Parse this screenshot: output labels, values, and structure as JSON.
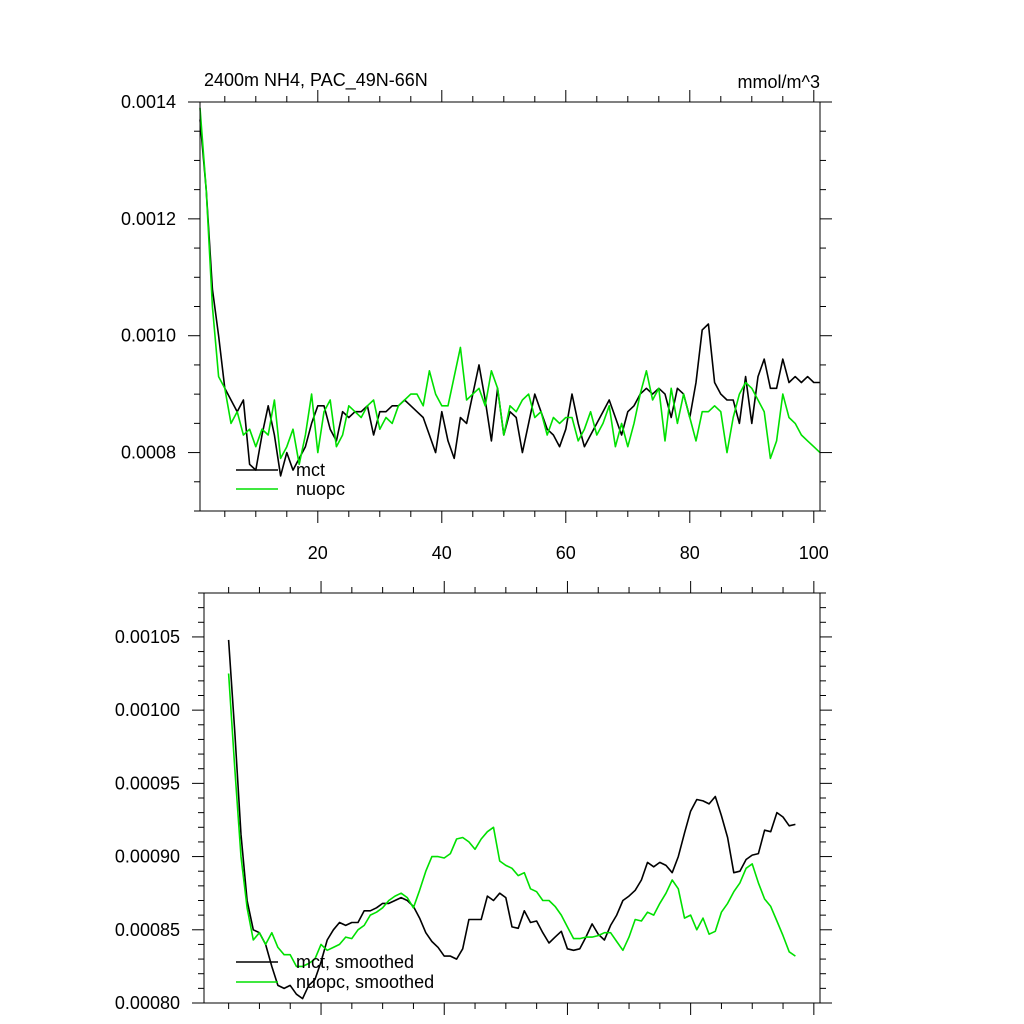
{
  "chart_data": [
    {
      "type": "line",
      "title": "2400m NH4, PAC_49N-66N",
      "units": "mmol/m^3",
      "xlim": [
        1,
        101
      ],
      "ylim": [
        0.0007,
        0.0014
      ],
      "x_ticks": [
        20,
        40,
        60,
        80,
        100
      ],
      "y_ticks": [
        "0.0008",
        "0.0010",
        "0.0012",
        "0.0014"
      ],
      "legend_position": "bottom-left",
      "series": [
        {
          "name": "mct",
          "color": "#000000",
          "x": [
            1,
            2,
            3,
            4,
            5,
            6,
            7,
            8,
            9,
            10,
            11,
            12,
            13,
            14,
            15,
            16,
            17,
            18,
            19,
            20,
            21,
            22,
            23,
            24,
            25,
            26,
            27,
            28,
            29,
            30,
            31,
            32,
            33,
            34,
            35,
            36,
            37,
            38,
            39,
            40,
            41,
            42,
            43,
            44,
            45,
            46,
            47,
            48,
            49,
            50,
            51,
            52,
            53,
            54,
            55,
            56,
            57,
            58,
            59,
            60,
            61,
            62,
            63,
            64,
            65,
            66,
            67,
            68,
            69,
            70,
            71,
            72,
            73,
            74,
            75,
            76,
            77,
            78,
            79,
            80,
            81,
            82,
            83,
            84,
            85,
            86,
            87,
            88,
            89,
            90,
            91,
            92,
            93,
            94,
            95,
            96,
            97,
            98,
            99,
            100,
            101
          ],
          "values": [
            0.00137,
            0.00125,
            0.00108,
            0.001,
            0.00091,
            0.00089,
            0.00087,
            0.00089,
            0.00078,
            0.00077,
            0.00083,
            0.00088,
            0.00083,
            0.00076,
            0.0008,
            0.00077,
            0.00079,
            0.00081,
            0.00085,
            0.00088,
            0.00088,
            0.00084,
            0.00082,
            0.00087,
            0.00086,
            0.00087,
            0.00087,
            0.00088,
            0.00083,
            0.00087,
            0.00087,
            0.00088,
            0.00088,
            0.00089,
            0.00088,
            0.00087,
            0.00086,
            0.00083,
            0.0008,
            0.00087,
            0.00082,
            0.00079,
            0.00086,
            0.00085,
            0.0009,
            0.00095,
            0.00089,
            0.00082,
            0.00091,
            0.00083,
            0.00087,
            0.00086,
            0.0008,
            0.00085,
            0.0009,
            0.00087,
            0.00084,
            0.00083,
            0.00081,
            0.00084,
            0.0009,
            0.00085,
            0.00081,
            0.00083,
            0.00085,
            0.00087,
            0.00089,
            0.00086,
            0.00083,
            0.00087,
            0.00088,
            0.0009,
            0.00091,
            0.0009,
            0.00091,
            0.0009,
            0.00086,
            0.00091,
            0.0009,
            0.00086,
            0.00092,
            0.00101,
            0.00102,
            0.00092,
            0.0009,
            0.00089,
            0.00089,
            0.00085,
            0.00093,
            0.00085,
            0.00093,
            0.00096,
            0.00091,
            0.00091,
            0.00096,
            0.00092,
            0.00093,
            0.00092,
            0.00093,
            0.00092,
            0.00092
          ]
        },
        {
          "name": "nuopc",
          "color": "#00e000",
          "x": [
            1,
            2,
            3,
            4,
            5,
            6,
            7,
            8,
            9,
            10,
            11,
            12,
            13,
            14,
            15,
            16,
            17,
            18,
            19,
            20,
            21,
            22,
            23,
            24,
            25,
            26,
            27,
            28,
            29,
            30,
            31,
            32,
            33,
            34,
            35,
            36,
            37,
            38,
            39,
            40,
            41,
            42,
            43,
            44,
            45,
            46,
            47,
            48,
            49,
            50,
            51,
            52,
            53,
            54,
            55,
            56,
            57,
            58,
            59,
            60,
            61,
            62,
            63,
            64,
            65,
            66,
            67,
            68,
            69,
            70,
            71,
            72,
            73,
            74,
            75,
            76,
            77,
            78,
            79,
            80,
            81,
            82,
            83,
            84,
            85,
            86,
            87,
            88,
            89,
            90,
            91,
            92,
            93,
            94,
            95,
            96,
            97,
            98,
            99,
            100,
            101
          ],
          "values": [
            0.00139,
            0.00125,
            0.00105,
            0.00093,
            0.00091,
            0.00085,
            0.00087,
            0.00083,
            0.00084,
            0.00081,
            0.00084,
            0.00083,
            0.00089,
            0.00079,
            0.00081,
            0.00084,
            0.00078,
            0.00083,
            0.0009,
            0.0008,
            0.00087,
            0.00089,
            0.00081,
            0.00083,
            0.00088,
            0.00087,
            0.00086,
            0.00088,
            0.00089,
            0.00084,
            0.00086,
            0.00085,
            0.00088,
            0.00089,
            0.0009,
            0.0009,
            0.00088,
            0.00094,
            0.0009,
            0.00088,
            0.00088,
            0.00093,
            0.00098,
            0.00089,
            0.0009,
            0.00091,
            0.00088,
            0.00094,
            0.00091,
            0.00083,
            0.00088,
            0.00087,
            0.00089,
            0.0009,
            0.00086,
            0.00087,
            0.00083,
            0.00086,
            0.00085,
            0.00086,
            0.00086,
            0.00082,
            0.00084,
            0.00087,
            0.00083,
            0.00085,
            0.00088,
            0.00081,
            0.00085,
            0.00081,
            0.00085,
            0.0009,
            0.00094,
            0.00089,
            0.00091,
            0.00082,
            0.00091,
            0.00085,
            0.0009,
            0.00086,
            0.00082,
            0.00087,
            0.00087,
            0.00088,
            0.00087,
            0.0008,
            0.00086,
            0.0009,
            0.00092,
            0.00091,
            0.00089,
            0.00087,
            0.00079,
            0.00082,
            0.0009,
            0.00086,
            0.00085,
            0.00083,
            0.00082,
            0.00081,
            0.0008
          ]
        }
      ]
    },
    {
      "type": "line",
      "xlim": [
        1,
        101
      ],
      "ylim": [
        0.0008,
        0.00108
      ],
      "y_ticks": [
        "0.00080",
        "0.00085",
        "0.00090",
        "0.00095",
        "0.00100",
        "0.00105"
      ],
      "legend_position": "bottom-left",
      "series": [
        {
          "name": "mct, smoothed",
          "color": "#000000",
          "x": [
            5,
            6,
            7,
            8,
            9,
            10,
            11,
            12,
            13,
            14,
            15,
            16,
            17,
            18,
            19,
            20,
            21,
            22,
            23,
            24,
            25,
            26,
            27,
            28,
            29,
            30,
            31,
            32,
            33,
            34,
            35,
            36,
            37,
            38,
            39,
            40,
            41,
            42,
            43,
            44,
            45,
            46,
            47,
            48,
            49,
            50,
            51,
            52,
            53,
            54,
            55,
            56,
            57,
            58,
            59,
            60,
            61,
            62,
            63,
            64,
            65,
            66,
            67,
            68,
            69,
            70,
            71,
            72,
            73,
            74,
            75,
            76,
            77,
            78,
            79,
            80,
            81,
            82,
            83,
            84,
            85,
            86,
            87,
            88,
            89,
            90,
            91,
            92,
            93,
            94,
            95,
            96,
            97
          ],
          "values": [
            0.001048,
            0.000985,
            0.000915,
            0.00087,
            0.00085,
            0.000848,
            0.00084,
            0.000825,
            0.000812,
            0.00081,
            0.000812,
            0.000806,
            0.000803,
            0.000812,
            0.000816,
            0.000828,
            0.000843,
            0.00085,
            0.000855,
            0.000853,
            0.000855,
            0.000855,
            0.000863,
            0.000863,
            0.000865,
            0.000868,
            0.000868,
            0.00087,
            0.000872,
            0.00087,
            0.000866,
            0.000858,
            0.000848,
            0.000842,
            0.000838,
            0.000832,
            0.000832,
            0.00083,
            0.000837,
            0.000857,
            0.000857,
            0.000857,
            0.000873,
            0.00087,
            0.000875,
            0.000872,
            0.000852,
            0.000851,
            0.000863,
            0.000855,
            0.000856,
            0.000848,
            0.000841,
            0.000845,
            0.000849,
            0.000837,
            0.000836,
            0.000837,
            0.000845,
            0.000854,
            0.000847,
            0.000843,
            0.000853,
            0.00086,
            0.00087,
            0.000873,
            0.000877,
            0.000884,
            0.000896,
            0.000893,
            0.000896,
            0.000894,
            0.000889,
            0.0009,
            0.000916,
            0.000931,
            0.000939,
            0.000938,
            0.000936,
            0.000941,
            0.000928,
            0.000913,
            0.000889,
            0.00089,
            0.000898,
            0.000901,
            0.000902,
            0.000918,
            0.000917,
            0.00093,
            0.000927,
            0.000921,
            0.000922
          ]
        },
        {
          "name": "nuopc, smoothed",
          "color": "#00e000",
          "x": [
            5,
            6,
            7,
            8,
            9,
            10,
            11,
            12,
            13,
            14,
            15,
            16,
            17,
            18,
            19,
            20,
            21,
            22,
            23,
            24,
            25,
            26,
            27,
            28,
            29,
            30,
            31,
            32,
            33,
            34,
            35,
            36,
            37,
            38,
            39,
            40,
            41,
            42,
            43,
            44,
            45,
            46,
            47,
            48,
            49,
            50,
            51,
            52,
            53,
            54,
            55,
            56,
            57,
            58,
            59,
            60,
            61,
            62,
            63,
            64,
            65,
            66,
            67,
            68,
            69,
            70,
            71,
            72,
            73,
            74,
            75,
            76,
            77,
            78,
            79,
            80,
            81,
            82,
            83,
            84,
            85,
            86,
            87,
            88,
            89,
            90,
            91,
            92,
            93,
            94,
            95,
            96,
            97
          ],
          "values": [
            0.001025,
            0.00096,
            0.0009,
            0.000865,
            0.000843,
            0.000848,
            0.00084,
            0.000848,
            0.000838,
            0.000833,
            0.000833,
            0.000825,
            0.000825,
            0.000827,
            0.00083,
            0.00084,
            0.000836,
            0.000838,
            0.00084,
            0.000845,
            0.000844,
            0.00085,
            0.000853,
            0.00086,
            0.000862,
            0.000865,
            0.00087,
            0.000873,
            0.000875,
            0.000872,
            0.000865,
            0.000877,
            0.00089,
            0.0009,
            0.0009,
            0.000899,
            0.000902,
            0.000912,
            0.000913,
            0.00091,
            0.000905,
            0.000912,
            0.000917,
            0.00092,
            0.000897,
            0.000894,
            0.000892,
            0.000887,
            0.000889,
            0.000878,
            0.000876,
            0.00087,
            0.00087,
            0.000866,
            0.00086,
            0.000852,
            0.000844,
            0.000844,
            0.000845,
            0.000845,
            0.000846,
            0.000848,
            0.000848,
            0.000842,
            0.000836,
            0.000845,
            0.000857,
            0.000856,
            0.000862,
            0.00086,
            0.000868,
            0.000875,
            0.000884,
            0.000878,
            0.000858,
            0.00086,
            0.00085,
            0.000858,
            0.000847,
            0.000849,
            0.000862,
            0.000868,
            0.000876,
            0.000882,
            0.000892,
            0.000895,
            0.000882,
            0.000871,
            0.000866,
            0.000856,
            0.000846,
            0.000835,
            0.000832
          ]
        }
      ]
    }
  ]
}
